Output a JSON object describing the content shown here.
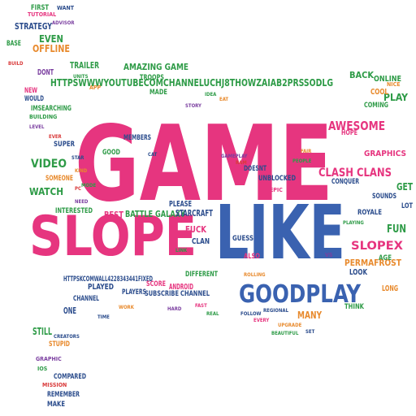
{
  "colors": {
    "pink": "#e6357f",
    "blue": "#3a62b0",
    "green": "#2e9b47",
    "orange": "#e88a2d",
    "purple": "#7b3fa0",
    "red": "#d93a3a",
    "teal": "#1f9aa3",
    "darkblue": "#2b4c8c",
    "brown": "#9a6a2f"
  },
  "words": {
    "game": "GAME",
    "like": "LIKE",
    "slope": "SLOPE",
    "goodplay": "GOODPLAY",
    "url_youtube": "HTTPSWWWYOUTUBECOMCHANNELUCHJ8THOWZAIAB2PRSSODLG",
    "awesome": "AWESOME",
    "clash_clans": "CLASH CLANS",
    "slopex": "SLOPEX",
    "permafrost": "PERMAFROST",
    "amazing_game": "AMAZING GAME",
    "battle_galaxy": "BATTLE GALAXY",
    "video": "VIDEO",
    "watch": "WATCH",
    "best": "BEST",
    "fun": "FUN",
    "play": "PLAY",
    "graphics": "GRAPHICS",
    "get": "GET",
    "back": "BACK",
    "online": "ONLINE",
    "cool": "COOL",
    "even": "EVEN",
    "offline": "OFFLINE",
    "strategy": "STRATEGY",
    "first": "FIRST",
    "base": "BASE",
    "trailer": "TRAILER",
    "dont": "DONT",
    "new": "NEW",
    "would": "WOULD",
    "imsearching": "IMSEARCHING",
    "super": "SUPER",
    "someone": "SOMEONE",
    "please": "PLEASE",
    "starcraft": "STARCRAFT",
    "fuck": "FUCK",
    "clan": "CLAN",
    "interested": "INTERESTED",
    "url_fb": "HTTPSKCOMWALL4228343441FIXED",
    "played": "PLAYED",
    "score": "SCORE",
    "android": "ANDROID",
    "subscribe": "SUBSCRIBE",
    "channel": "CHANNEL",
    "different": "DIFFERENT",
    "players": "PLAYERS",
    "still": "STILL",
    "one": "ONE",
    "many": "MANY",
    "look": "LOOK",
    "long": "LONG",
    "lot": "LOT",
    "royale": "ROYALE",
    "unblocked": "UNBLOCKED",
    "members": "MEMBERS",
    "doesnt": "DOESNT",
    "good": "GOOD",
    "troops": "TROOPS",
    "made": "MADE",
    "remember": "REMEMBER",
    "compared": "COMPARED",
    "make": "MAKE",
    "stupid": "STUPID",
    "sounds": "SOUNDS",
    "conquer": "CONQUER",
    "hope": "HOPE",
    "age": "AGE",
    "also": "ALSO",
    "guess": "GUESS",
    "coming": "COMING",
    "think": "THINK",
    "playing": "PLAYING",
    "vs": "VS",
    "upgrade": "UPGRADE",
    "set": "SET",
    "mission": "MISSION",
    "graphic": "GRAPHIC",
    "ios": "IOS",
    "creators": "CREATORS",
    "nice": "NICE",
    "epic": "EPIC",
    "cat": "CAT",
    "link": "LINK",
    "rolling": "ROLLING",
    "pc": "PC",
    "tutorial": "TUTORIAL",
    "want": "WANT",
    "adviser": "ADVISOR",
    "build": "BUILD",
    "units": "UNITS",
    "app": "APP",
    "building": "BUILDING",
    "level": "LEVEL",
    "ever": "EVER",
    "star": "STAR",
    "kind": "KIND",
    "mode": "MODE",
    "need": "NEED",
    "beautiful": "BEAUTIFUL",
    "regional": "REGIONAL",
    "every": "EVERY",
    "gameplay": "GAMEPLAY",
    "ram": "RAM",
    "people": "PEOPLE",
    "fair": "FAIR",
    "follow": "FOLLOW",
    "fast": "FAST",
    "real": "REAL",
    "hard": "HARD",
    "work": "WORK",
    "time": "TIME",
    "idea": "IDEA",
    "eat": "EAT",
    "story": "STORY"
  }
}
